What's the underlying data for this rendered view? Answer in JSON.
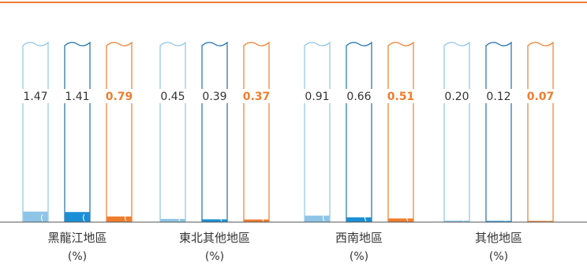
{
  "colors": {
    "top_rule": "#ef7d2e",
    "baseline": "#555555",
    "series": [
      "#8ec5e6",
      "#1b8fd6",
      "#ef7d2e"
    ],
    "outline": [
      "#8ec5e6",
      "#1f6ea8",
      "#ef7d2e"
    ],
    "value_text": [
      "#333333",
      "#333333",
      "#ef7d2e"
    ]
  },
  "chart_data": {
    "type": "bar",
    "categories": [
      "黑龍江地區",
      "東北其他地區",
      "西南地區",
      "其他地區"
    ],
    "unit_label": "(%)",
    "series": [
      {
        "values": [
          1.47,
          0.45,
          0.91,
          0.2
        ]
      },
      {
        "values": [
          1.41,
          0.39,
          0.66,
          0.12
        ]
      },
      {
        "values": [
          0.79,
          0.37,
          0.51,
          0.07
        ]
      }
    ],
    "value_labels": [
      [
        "1.47",
        "1.41",
        "0.79"
      ],
      [
        "0.45",
        "0.39",
        "0.37"
      ],
      [
        "0.91",
        "0.66",
        "0.51"
      ],
      [
        "0.20",
        "0.12",
        "0.07"
      ]
    ],
    "bold_series_index": 2,
    "title": "",
    "xlabel": "",
    "ylabel": "",
    "ylim": [
      0,
      25
    ],
    "axis_broken": true,
    "legend": "none",
    "grid": false
  }
}
